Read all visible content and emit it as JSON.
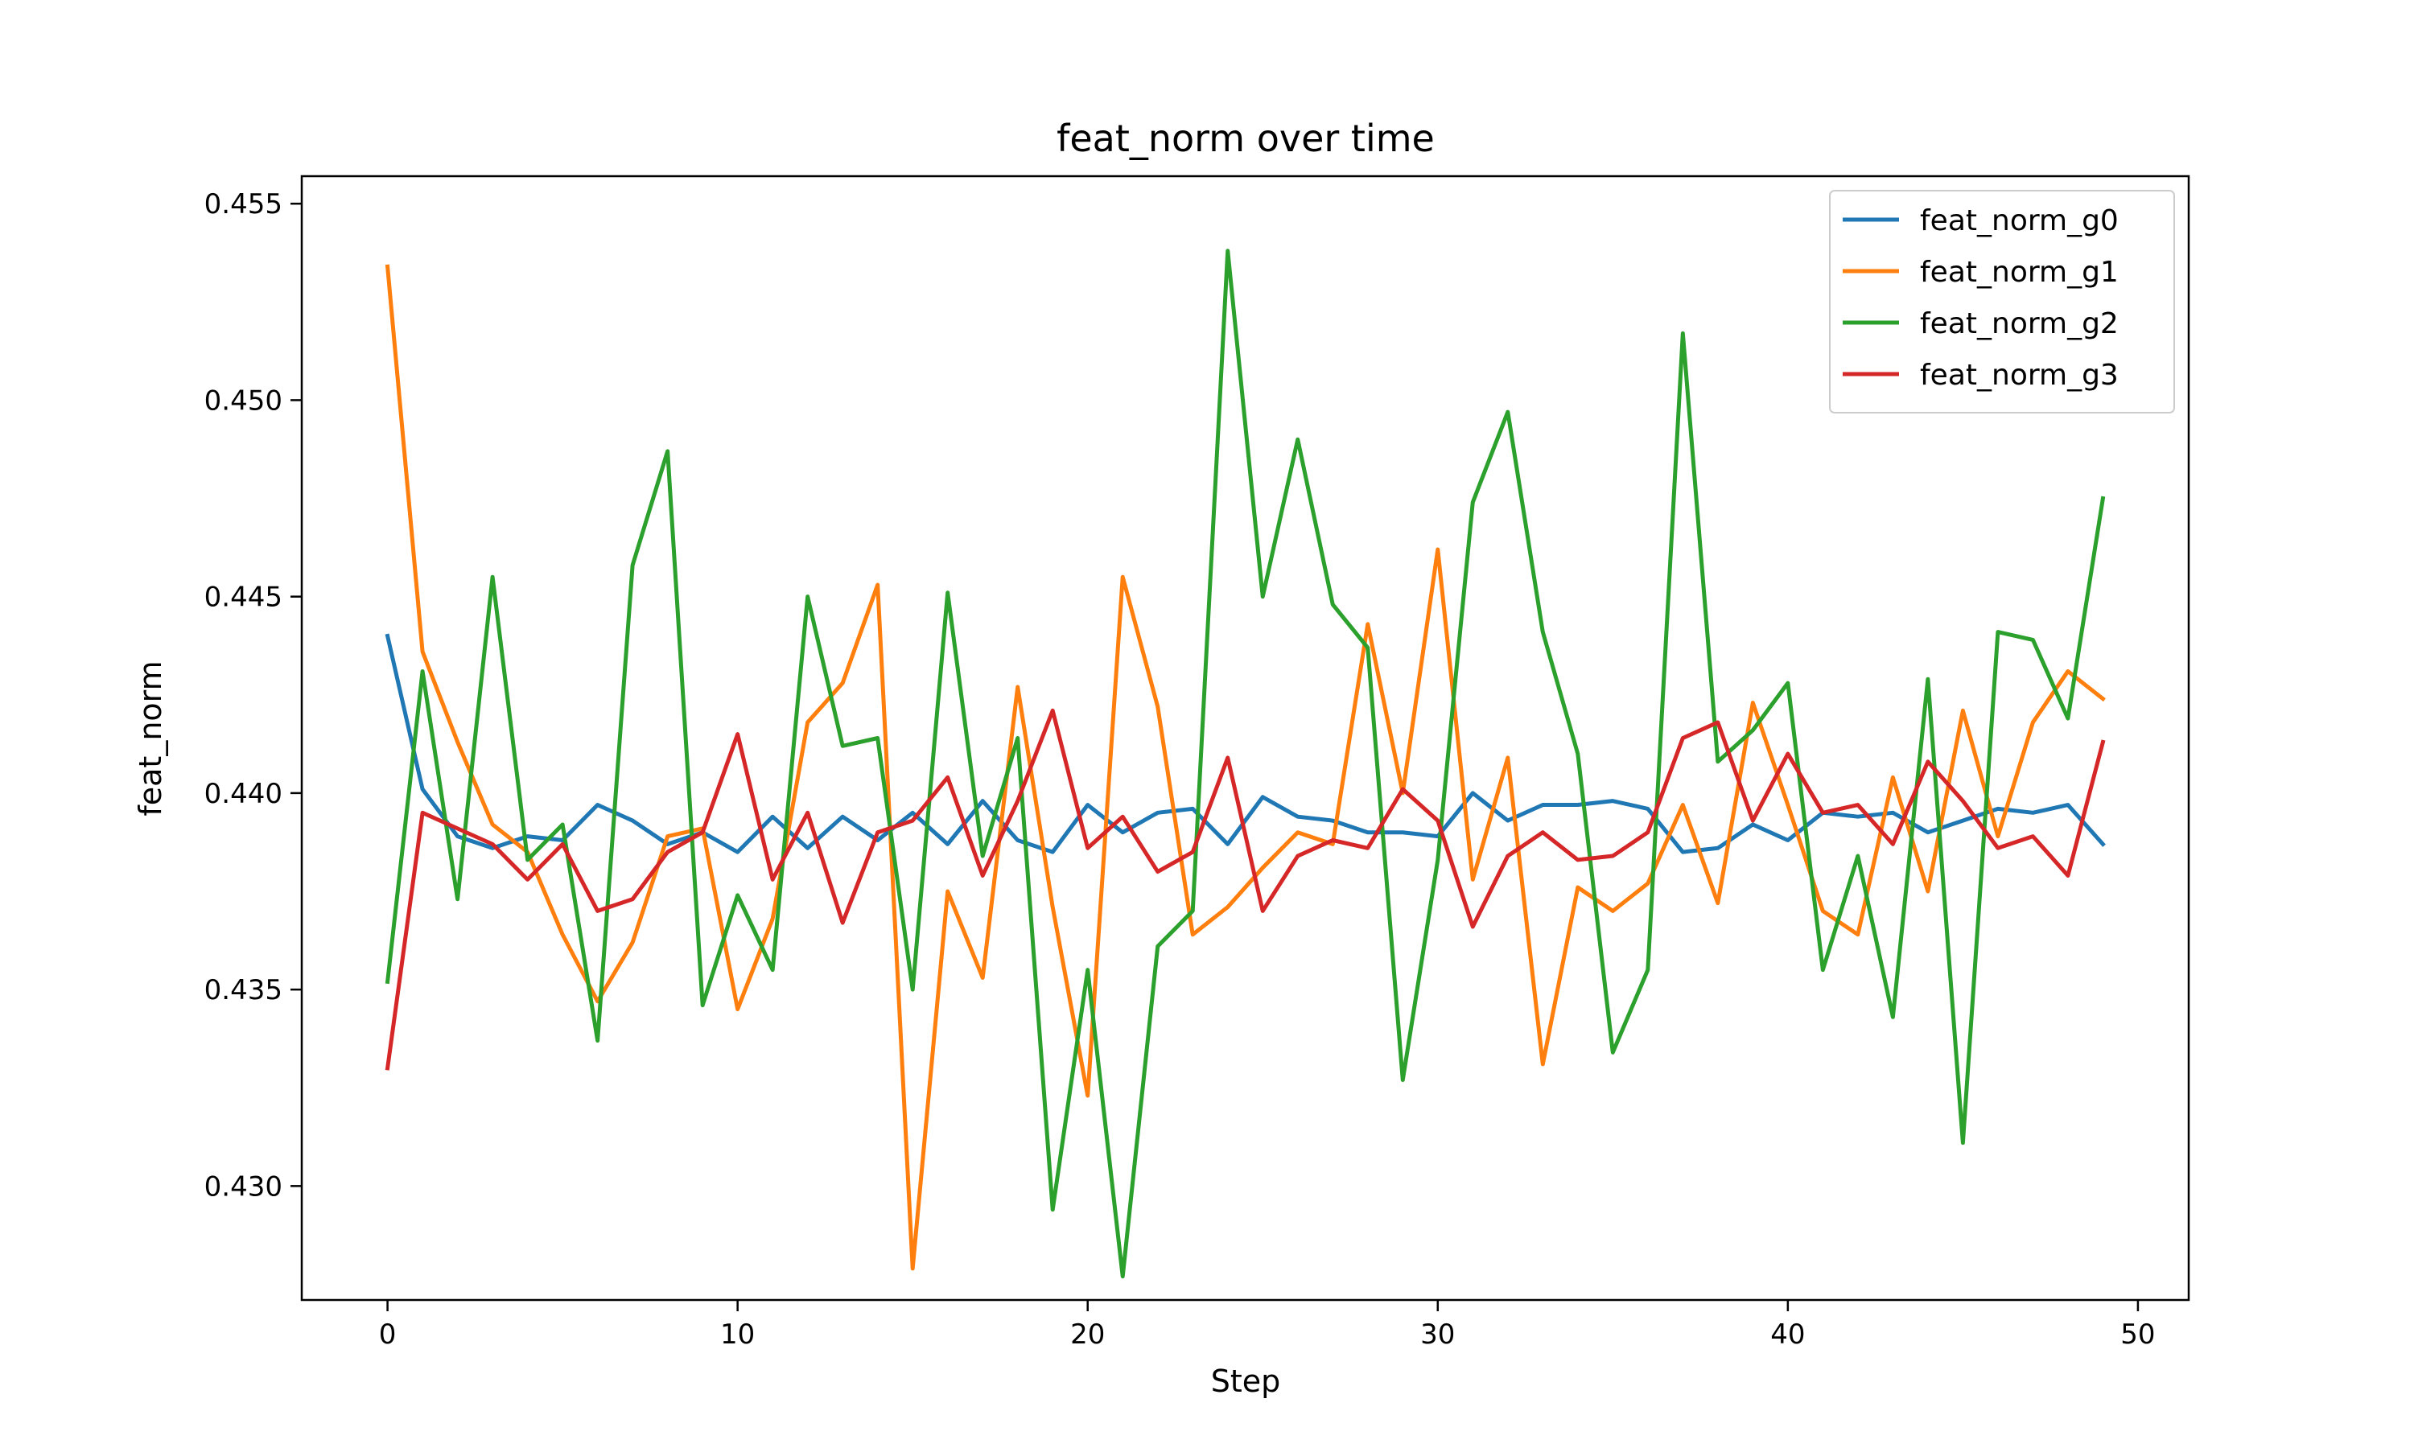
{
  "chart_data": {
    "type": "line",
    "title": "feat_norm over time",
    "xlabel": "Step",
    "ylabel": "feat_norm",
    "xlim": [
      -2.45,
      51.45
    ],
    "ylim": [
      0.4271,
      0.4557
    ],
    "xticks": [
      0,
      10,
      20,
      30,
      40,
      50
    ],
    "yticks": [
      0.43,
      0.435,
      0.44,
      0.445,
      0.45,
      0.455
    ],
    "ytick_labels": [
      "0.430",
      "0.435",
      "0.440",
      "0.445",
      "0.450",
      "0.455"
    ],
    "grid": false,
    "legend_position": "top-right",
    "x": [
      0,
      1,
      2,
      3,
      4,
      5,
      6,
      7,
      8,
      9,
      10,
      11,
      12,
      13,
      14,
      15,
      16,
      17,
      18,
      19,
      20,
      21,
      22,
      23,
      24,
      25,
      26,
      27,
      28,
      29,
      30,
      31,
      32,
      33,
      34,
      35,
      36,
      37,
      38,
      39,
      40,
      41,
      42,
      43,
      44,
      45,
      46,
      47,
      48,
      49
    ],
    "series": [
      {
        "name": "feat_norm_g0",
        "color": "#1f77b4",
        "values": [
          0.444,
          0.4401,
          0.4389,
          0.4386,
          0.4389,
          0.4388,
          0.4397,
          0.4393,
          0.4387,
          0.439,
          0.4385,
          0.4394,
          0.4386,
          0.4394,
          0.4388,
          0.4395,
          0.4387,
          0.4398,
          0.4388,
          0.4385,
          0.4397,
          0.439,
          0.4395,
          0.4396,
          0.4387,
          0.4399,
          0.4394,
          0.4393,
          0.439,
          0.439,
          0.4389,
          0.44,
          0.4393,
          0.4397,
          0.4397,
          0.4398,
          0.4396,
          0.4385,
          0.4386,
          0.4392,
          0.4388,
          0.4395,
          0.4394,
          0.4395,
          0.439,
          0.4393,
          0.4396,
          0.4395,
          0.4397,
          0.4387
        ]
      },
      {
        "name": "feat_norm_g1",
        "color": "#ff7f0e",
        "values": [
          0.4534,
          0.4436,
          0.4413,
          0.4392,
          0.4385,
          0.4364,
          0.4347,
          0.4362,
          0.4389,
          0.4391,
          0.4345,
          0.4368,
          0.4418,
          0.4428,
          0.4453,
          0.4279,
          0.4375,
          0.4353,
          0.4427,
          0.4371,
          0.4323,
          0.4455,
          0.4422,
          0.4364,
          0.4371,
          0.4381,
          0.439,
          0.4387,
          0.4443,
          0.44,
          0.4462,
          0.4378,
          0.4409,
          0.4331,
          0.4376,
          0.437,
          0.4377,
          0.4397,
          0.4372,
          0.4423,
          0.4397,
          0.437,
          0.4364,
          0.4404,
          0.4375,
          0.4421,
          0.4389,
          0.4418,
          0.4431,
          0.4424
        ]
      },
      {
        "name": "feat_norm_g2",
        "color": "#2ca02c",
        "values": [
          0.4352,
          0.4431,
          0.4373,
          0.4455,
          0.4383,
          0.4392,
          0.4337,
          0.4458,
          0.4487,
          0.4346,
          0.4374,
          0.4355,
          0.445,
          0.4412,
          0.4414,
          0.435,
          0.4451,
          0.4384,
          0.4414,
          0.4294,
          0.4355,
          0.4277,
          0.4361,
          0.437,
          0.4538,
          0.445,
          0.449,
          0.4448,
          0.4437,
          0.4327,
          0.4383,
          0.4474,
          0.4497,
          0.4441,
          0.441,
          0.4334,
          0.4355,
          0.4517,
          0.4408,
          0.4416,
          0.4428,
          0.4355,
          0.4384,
          0.4343,
          0.4429,
          0.4311,
          0.4441,
          0.4439,
          0.4419,
          0.4475
        ]
      },
      {
        "name": "feat_norm_g3",
        "color": "#d62728",
        "values": [
          0.433,
          0.4395,
          0.4391,
          0.4387,
          0.4378,
          0.4387,
          0.437,
          0.4373,
          0.4385,
          0.439,
          0.4415,
          0.4378,
          0.4395,
          0.4367,
          0.439,
          0.4393,
          0.4404,
          0.4379,
          0.4398,
          0.4421,
          0.4386,
          0.4394,
          0.438,
          0.4385,
          0.4409,
          0.437,
          0.4384,
          0.4388,
          0.4386,
          0.4401,
          0.4393,
          0.4366,
          0.4384,
          0.439,
          0.4383,
          0.4384,
          0.439,
          0.4414,
          0.4418,
          0.4393,
          0.441,
          0.4395,
          0.4397,
          0.4387,
          0.4408,
          0.4398,
          0.4386,
          0.4389,
          0.4379,
          0.4413
        ]
      }
    ]
  }
}
